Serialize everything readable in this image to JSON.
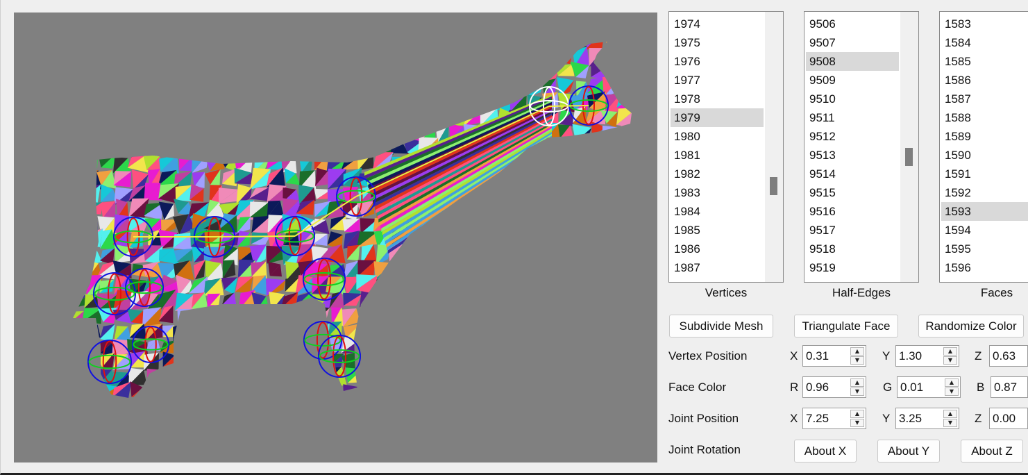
{
  "viewport": {
    "background": "#808080",
    "subject": "Cow mesh with randomly colored triangular faces and joint gizmos"
  },
  "lists": {
    "vertices": {
      "caption": "Vertices",
      "items": [
        "1974",
        "1975",
        "1976",
        "1977",
        "1978",
        "1979",
        "1980",
        "1981",
        "1982",
        "1983",
        "1984",
        "1985",
        "1986",
        "1987"
      ],
      "selected": "1979"
    },
    "half_edges": {
      "caption": "Half-Edges",
      "items": [
        "9506",
        "9507",
        "9508",
        "9509",
        "9510",
        "9511",
        "9512",
        "9513",
        "9514",
        "9515",
        "9516",
        "9517",
        "9518",
        "9519"
      ],
      "selected": "9508"
    },
    "faces": {
      "caption": "Faces",
      "items": [
        "1583",
        "1584",
        "1585",
        "1586",
        "1587",
        "1588",
        "1589",
        "1590",
        "1591",
        "1592",
        "1593",
        "1594",
        "1595",
        "1596"
      ],
      "selected": "1593"
    }
  },
  "buttons": {
    "subdivide": "Subdivide Mesh",
    "triangulate": "Triangulate Face",
    "randomize": "Randomize Color",
    "about_x": "About X",
    "about_y": "About Y",
    "about_z": "About Z"
  },
  "vertex_position": {
    "label": "Vertex Position",
    "x_label": "X",
    "x": "0.31",
    "y_label": "Y",
    "y": "1.30",
    "z_label": "Z",
    "z": "0.63"
  },
  "face_color": {
    "label": "Face Color",
    "r_label": "R",
    "r": "0.96",
    "g_label": "G",
    "g": "0.01",
    "b_label": "B",
    "b": "0.87"
  },
  "joint_position": {
    "label": "Joint Position",
    "x_label": "X",
    "x": "7.25",
    "y_label": "Y",
    "y": "3.25",
    "z_label": "Z",
    "z": "0.00"
  },
  "joint_rotation": {
    "label": "Joint Rotation"
  },
  "icons": {
    "spin_up": "chevron-up-icon",
    "spin_down": "chevron-down-icon"
  }
}
